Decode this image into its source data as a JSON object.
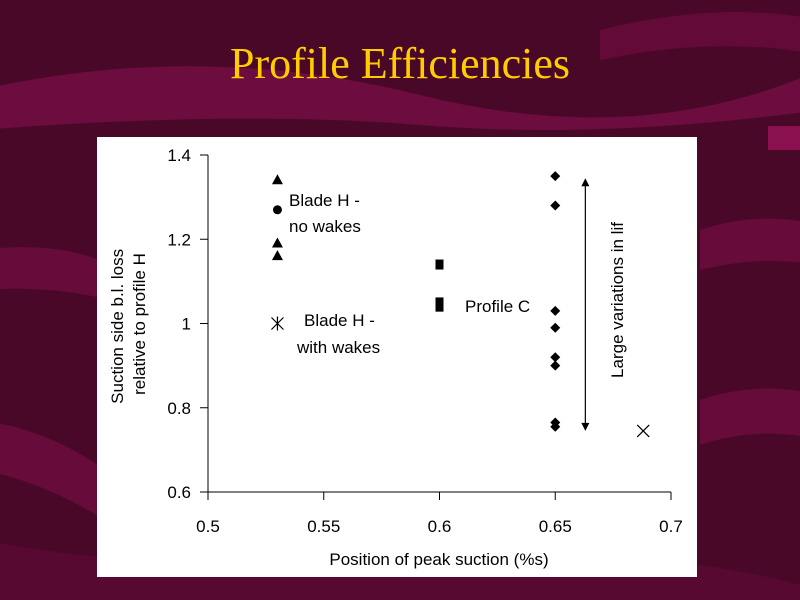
{
  "slide": {
    "title": "Profile Efficiencies",
    "colors": {
      "background": "#4a0828",
      "stripe": "#7a0e45",
      "title": "#ffcc00",
      "panel": "#ffffff"
    }
  },
  "chart_data": {
    "type": "scatter",
    "title": "",
    "xlabel": "Position of peak suction (%s)",
    "ylabel_lines": [
      "Suction side b.l. loss",
      "relative to profile H"
    ],
    "xlim": [
      0.5,
      0.7
    ],
    "ylim": [
      0.6,
      1.4
    ],
    "x_ticks": [
      "0.5",
      "0.55",
      "0.6",
      "0.65",
      "0.7"
    ],
    "y_ticks": [
      "0.6",
      "0.8",
      "1",
      "1.2",
      "1.4"
    ],
    "grid": false,
    "legend": "none",
    "series": [
      {
        "marker": "triangle",
        "points": [
          [
            0.53,
            1.34
          ],
          [
            0.53,
            1.19
          ],
          [
            0.53,
            1.16
          ]
        ]
      },
      {
        "marker": "circle",
        "points": [
          [
            0.53,
            1.27
          ]
        ]
      },
      {
        "marker": "asterisk",
        "points": [
          [
            0.53,
            1.0
          ]
        ]
      },
      {
        "marker": "square",
        "points": [
          [
            0.6,
            1.14
          ],
          [
            0.6,
            1.05
          ],
          [
            0.6,
            1.04
          ]
        ]
      },
      {
        "marker": "diamond",
        "points": [
          [
            0.65,
            1.35
          ],
          [
            0.65,
            1.28
          ],
          [
            0.65,
            1.03
          ],
          [
            0.65,
            0.99
          ],
          [
            0.65,
            0.92
          ],
          [
            0.65,
            0.9
          ],
          [
            0.65,
            0.765
          ],
          [
            0.65,
            0.755
          ]
        ]
      },
      {
        "marker": "x",
        "points": [
          [
            0.688,
            0.745
          ]
        ]
      }
    ],
    "annotations": {
      "blade_h_no_wakes": [
        "Blade H -",
        "no wakes"
      ],
      "blade_h_with_wakes": [
        "Blade H -",
        "with wakes"
      ],
      "profile_c": "Profile C",
      "large_variations": "Large variations in lif"
    },
    "range_arrow": {
      "x": 0.663,
      "y_from": 0.75,
      "y_to": 1.34
    }
  }
}
